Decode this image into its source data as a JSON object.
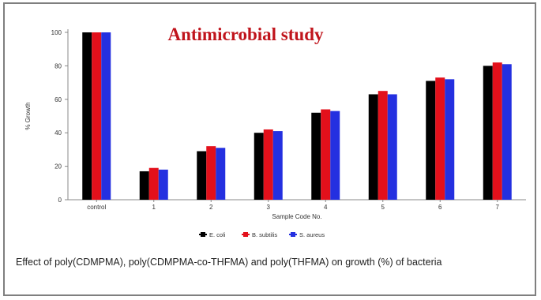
{
  "caption": "Effect of poly(CDMPMA), poly(CDMPMA-co-THFMA) and poly(THFMA) on growth (%) of bacteria",
  "colors": {
    "series_1": "#000000",
    "series_2": "#e3101b",
    "series_3": "#2430e0",
    "title": "#c0141c"
  },
  "chart_data": {
    "type": "bar",
    "title": "Antimicrobial study",
    "xlabel": "Sample Code No.",
    "ylabel": "% Growth",
    "ylim": [
      0,
      100
    ],
    "yticks": [
      0,
      20,
      40,
      60,
      80,
      100
    ],
    "grid": false,
    "legend_position": "bottom",
    "categories": [
      "control",
      "1",
      "2",
      "3",
      "4",
      "5",
      "6",
      "7"
    ],
    "series": [
      {
        "name": "E. coli",
        "values": [
          100,
          17,
          29,
          40,
          52,
          63,
          71,
          80
        ]
      },
      {
        "name": "B. subtilis",
        "values": [
          100,
          19,
          32,
          42,
          54,
          65,
          73,
          82
        ]
      },
      {
        "name": "S. aureus",
        "values": [
          100,
          18,
          31,
          41,
          53,
          63,
          72,
          81
        ]
      }
    ]
  }
}
